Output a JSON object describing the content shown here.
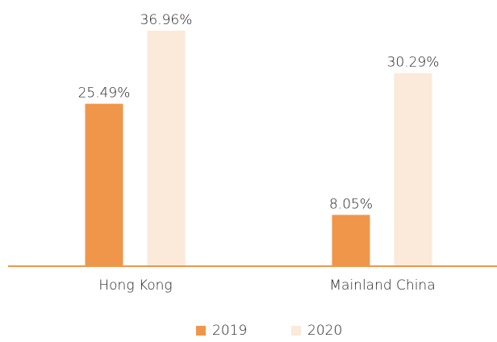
{
  "chart_data": {
    "type": "bar",
    "categories": [
      "Hong Kong",
      "Mainland China"
    ],
    "series": [
      {
        "name": "2019",
        "color": "#f0964b",
        "values": [
          25.49,
          8.05
        ],
        "value_labels": [
          "25.49%",
          "8.05%"
        ]
      },
      {
        "name": "2020",
        "color": "#fbe9da",
        "values": [
          36.96,
          30.29
        ],
        "value_labels": [
          "36.96%",
          "30.29%"
        ]
      }
    ],
    "axis_color": "#f0964b"
  }
}
